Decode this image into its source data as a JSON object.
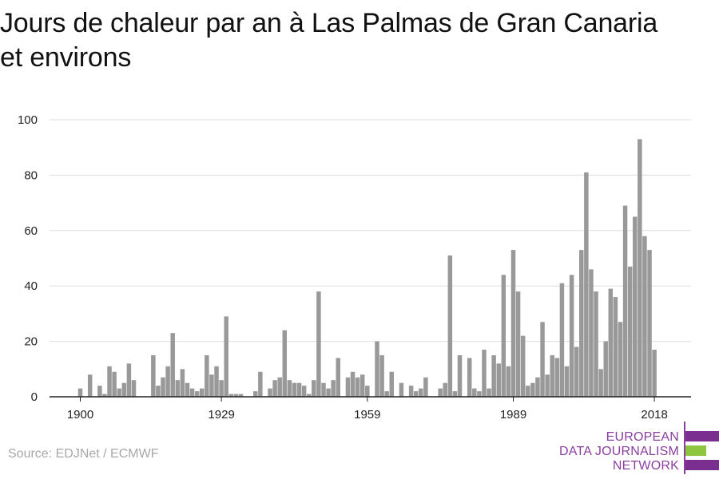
{
  "title": {
    "line1": "Jours de chaleur par an à Las Palmas de Gran Canaria",
    "line2": "et environs"
  },
  "source": "Source: EDJNet / ECMWF",
  "logo": {
    "line1": "EUROPEAN",
    "line2": "DATA JOURNALISM",
    "line3": "NETWORK",
    "colors": {
      "purple": "#7a2e90",
      "green": "#8ec63f"
    }
  },
  "chart_data": {
    "type": "bar",
    "title": "Jours de chaleur par an à Las Palmas de Gran Canaria et environs",
    "xlabel": "",
    "ylabel": "",
    "ylim": [
      0,
      100
    ],
    "yticks": [
      0,
      20,
      40,
      60,
      80,
      100
    ],
    "xticks": [
      1900,
      1929,
      1959,
      1989,
      2018
    ],
    "grid": true,
    "bar_color": "#999999",
    "x": [
      1900,
      1901,
      1902,
      1903,
      1904,
      1905,
      1906,
      1907,
      1908,
      1909,
      1910,
      1911,
      1912,
      1913,
      1914,
      1915,
      1916,
      1917,
      1918,
      1919,
      1920,
      1921,
      1922,
      1923,
      1924,
      1925,
      1926,
      1927,
      1928,
      1929,
      1930,
      1931,
      1932,
      1933,
      1934,
      1935,
      1936,
      1937,
      1938,
      1939,
      1940,
      1941,
      1942,
      1943,
      1944,
      1945,
      1946,
      1947,
      1948,
      1949,
      1950,
      1951,
      1952,
      1953,
      1954,
      1955,
      1956,
      1957,
      1958,
      1959,
      1960,
      1961,
      1962,
      1963,
      1964,
      1965,
      1966,
      1967,
      1968,
      1969,
      1970,
      1971,
      1972,
      1973,
      1974,
      1975,
      1976,
      1977,
      1978,
      1979,
      1980,
      1981,
      1982,
      1983,
      1984,
      1985,
      1986,
      1987,
      1988,
      1989,
      1990,
      1991,
      1992,
      1993,
      1994,
      1995,
      1996,
      1997,
      1998,
      1999,
      2000,
      2001,
      2002,
      2003,
      2004,
      2005,
      2006,
      2007,
      2008,
      2009,
      2010,
      2011,
      2012,
      2013,
      2014,
      2015,
      2016,
      2017,
      2018
    ],
    "values": [
      3,
      0,
      8,
      0,
      4,
      1,
      11,
      9,
      3,
      5,
      12,
      6,
      0,
      0,
      0,
      15,
      4,
      7,
      11,
      23,
      6,
      10,
      5,
      3,
      2,
      3,
      15,
      8,
      11,
      6,
      29,
      1,
      1,
      1,
      0,
      0,
      2,
      9,
      0,
      3,
      6,
      7,
      24,
      6,
      5,
      5,
      4,
      1,
      6,
      38,
      5,
      3,
      6,
      14,
      0,
      7,
      9,
      7,
      8,
      4,
      0,
      20,
      15,
      2,
      9,
      0,
      5,
      0,
      4,
      2,
      3,
      7,
      0,
      0,
      3,
      5,
      51,
      2,
      15,
      0,
      14,
      3,
      2,
      17,
      3,
      15,
      12,
      44,
      11,
      53,
      38,
      22,
      4,
      5,
      7,
      27,
      8,
      15,
      14,
      41,
      11,
      44,
      18,
      53,
      81,
      46,
      38,
      10,
      20,
      39,
      36,
      27,
      69,
      47,
      65,
      93,
      58,
      53,
      17
    ]
  }
}
